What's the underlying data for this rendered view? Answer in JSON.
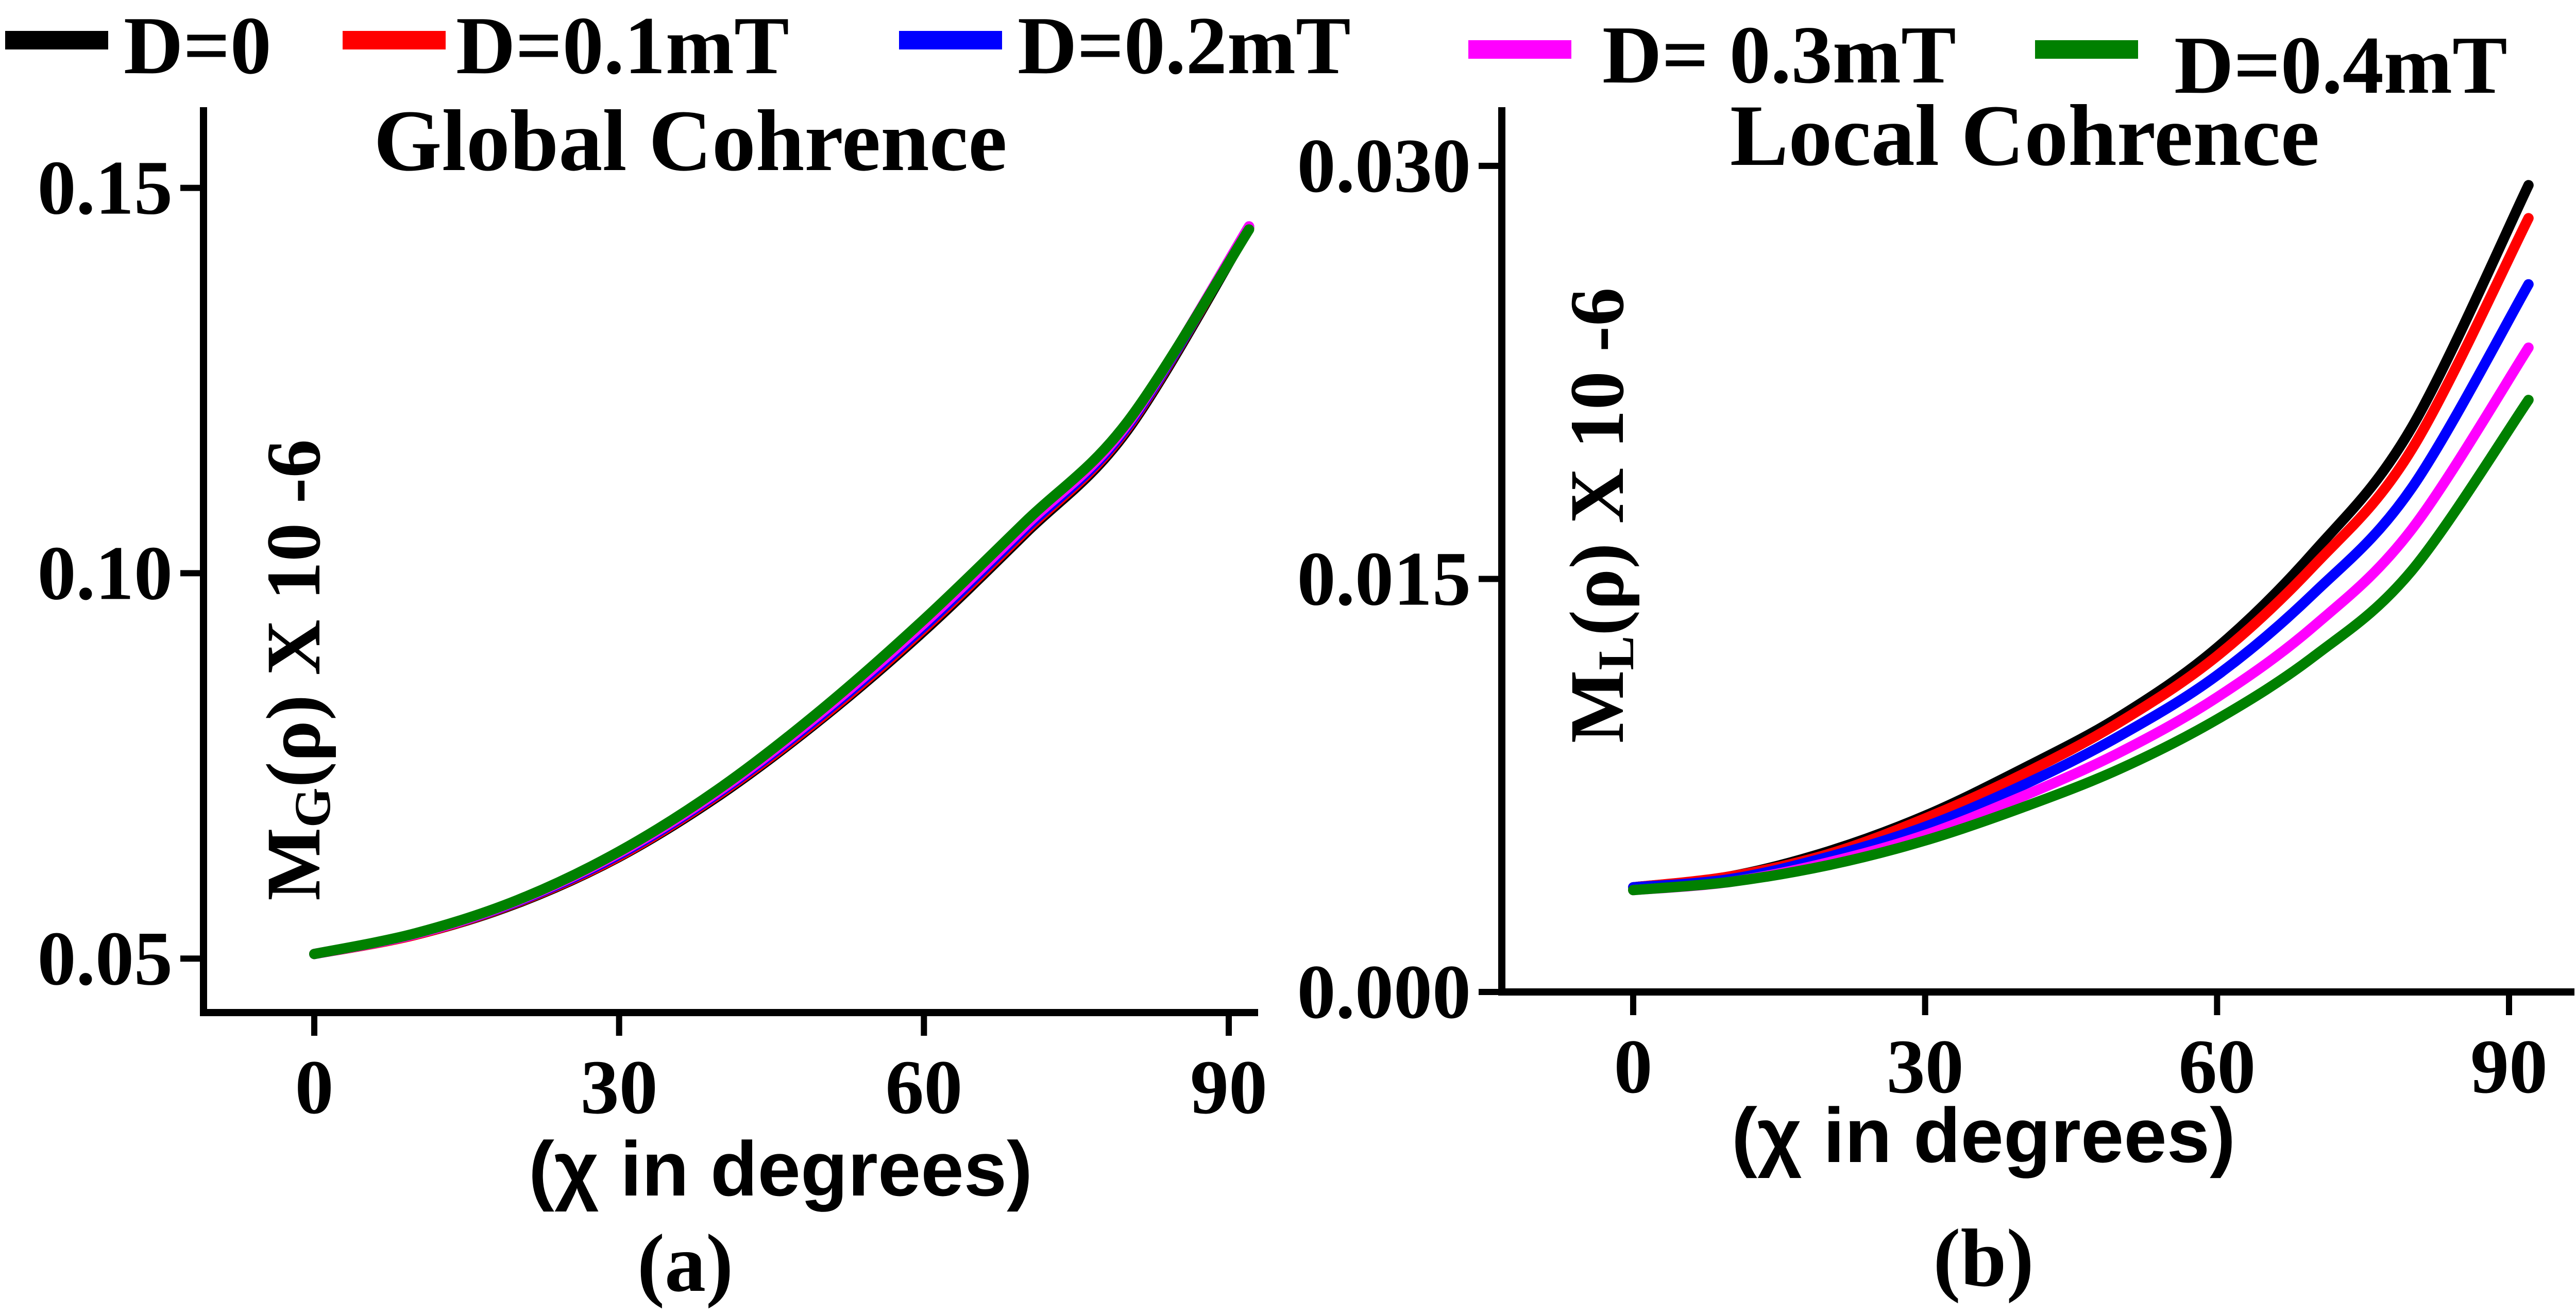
{
  "legend": {
    "entries": [
      {
        "label": "D=0",
        "color": "#000000"
      },
      {
        "label": "D=0.1mT",
        "color": "#ff0000"
      },
      {
        "label": "D=0.2mT",
        "color": "#0000ff"
      },
      {
        "label": "D= 0.3mT",
        "color": "#ff00ff"
      },
      {
        "label": "D=0.4mT",
        "color": "#008000"
      }
    ]
  },
  "chart_data": [
    {
      "type": "line",
      "title": "Global Cohrence",
      "panel_label": "(a)",
      "xlabel": "(χ in degrees)",
      "ylabel": {
        "main": "M",
        "sub": "G",
        "rest": "(ρ) X 10 -6"
      },
      "xlim": [
        -10,
        93
      ],
      "ylim": [
        0.043,
        0.16
      ],
      "xticks": [
        0,
        30,
        60,
        90
      ],
      "xtick_labels": [
        "0",
        "30",
        "60",
        "90"
      ],
      "yticks": [
        0.05,
        0.1,
        0.15
      ],
      "ytick_labels": [
        "0.05",
        "0.10",
        "0.15"
      ],
      "x": [
        0,
        10,
        20,
        30,
        40,
        50,
        60,
        70,
        80,
        92
      ],
      "series": [
        {
          "name": "D=0",
          "values": [
            0.0506,
            0.0531,
            0.0572,
            0.0632,
            0.0713,
            0.0812,
            0.0925,
            0.1052,
            0.1185,
            0.1448
          ]
        },
        {
          "name": "D=0.1mT",
          "values": [
            0.0506,
            0.0531,
            0.0573,
            0.0633,
            0.0715,
            0.0814,
            0.0928,
            0.1055,
            0.1188,
            0.145
          ]
        },
        {
          "name": "D=0.2mT",
          "values": [
            0.0506,
            0.0532,
            0.0574,
            0.0635,
            0.0717,
            0.0817,
            0.0931,
            0.1058,
            0.119,
            0.145
          ]
        },
        {
          "name": "D= 0.3mT",
          "values": [
            0.0506,
            0.0532,
            0.0575,
            0.0637,
            0.0719,
            0.082,
            0.0935,
            0.1062,
            0.1193,
            0.145
          ]
        },
        {
          "name": "D=0.4mT",
          "values": [
            0.0506,
            0.0533,
            0.0576,
            0.0639,
            0.0722,
            0.0824,
            0.094,
            0.1067,
            0.1196,
            0.1446
          ]
        }
      ]
    },
    {
      "type": "line",
      "title": "Local Cohrence",
      "panel_label": "(b)",
      "xlabel": "(χ in degrees)",
      "ylabel": {
        "main": "M",
        "sub": "L",
        "rest": "(ρ) X 10 -6"
      },
      "xlim": [
        -10,
        93
      ],
      "ylim": [
        0,
        0.032
      ],
      "xticks": [
        0,
        30,
        60,
        90
      ],
      "xtick_labels": [
        "0",
        "30",
        "60",
        "90"
      ],
      "yticks": [
        0.0,
        0.015,
        0.03
      ],
      "ytick_labels": [
        "0.000",
        "0.015",
        "0.030"
      ],
      "x": [
        0,
        10,
        20,
        30,
        40,
        50,
        60,
        70,
        80,
        92
      ],
      "series": [
        {
          "name": "D=0",
          "values": [
            0.0038,
            0.0042,
            0.0051,
            0.0064,
            0.0081,
            0.01,
            0.0125,
            0.016,
            0.0205,
            0.0293
          ]
        },
        {
          "name": "D=0.1mT",
          "values": [
            0.0038,
            0.0042,
            0.005,
            0.0063,
            0.0079,
            0.0098,
            0.0122,
            0.0155,
            0.0197,
            0.0281
          ]
        },
        {
          "name": "D=0.2mT",
          "values": [
            0.0038,
            0.0041,
            0.0049,
            0.006,
            0.0075,
            0.0093,
            0.0115,
            0.0145,
            0.0183,
            0.0257
          ]
        },
        {
          "name": "D= 0.3mT",
          "values": [
            0.0037,
            0.004,
            0.0047,
            0.0057,
            0.0071,
            0.0087,
            0.0107,
            0.0133,
            0.0168,
            0.0234
          ]
        },
        {
          "name": "D=0.4mT",
          "values": [
            0.0037,
            0.004,
            0.0046,
            0.0055,
            0.0067,
            0.0081,
            0.0099,
            0.0122,
            0.0153,
            0.0215
          ]
        }
      ]
    }
  ]
}
